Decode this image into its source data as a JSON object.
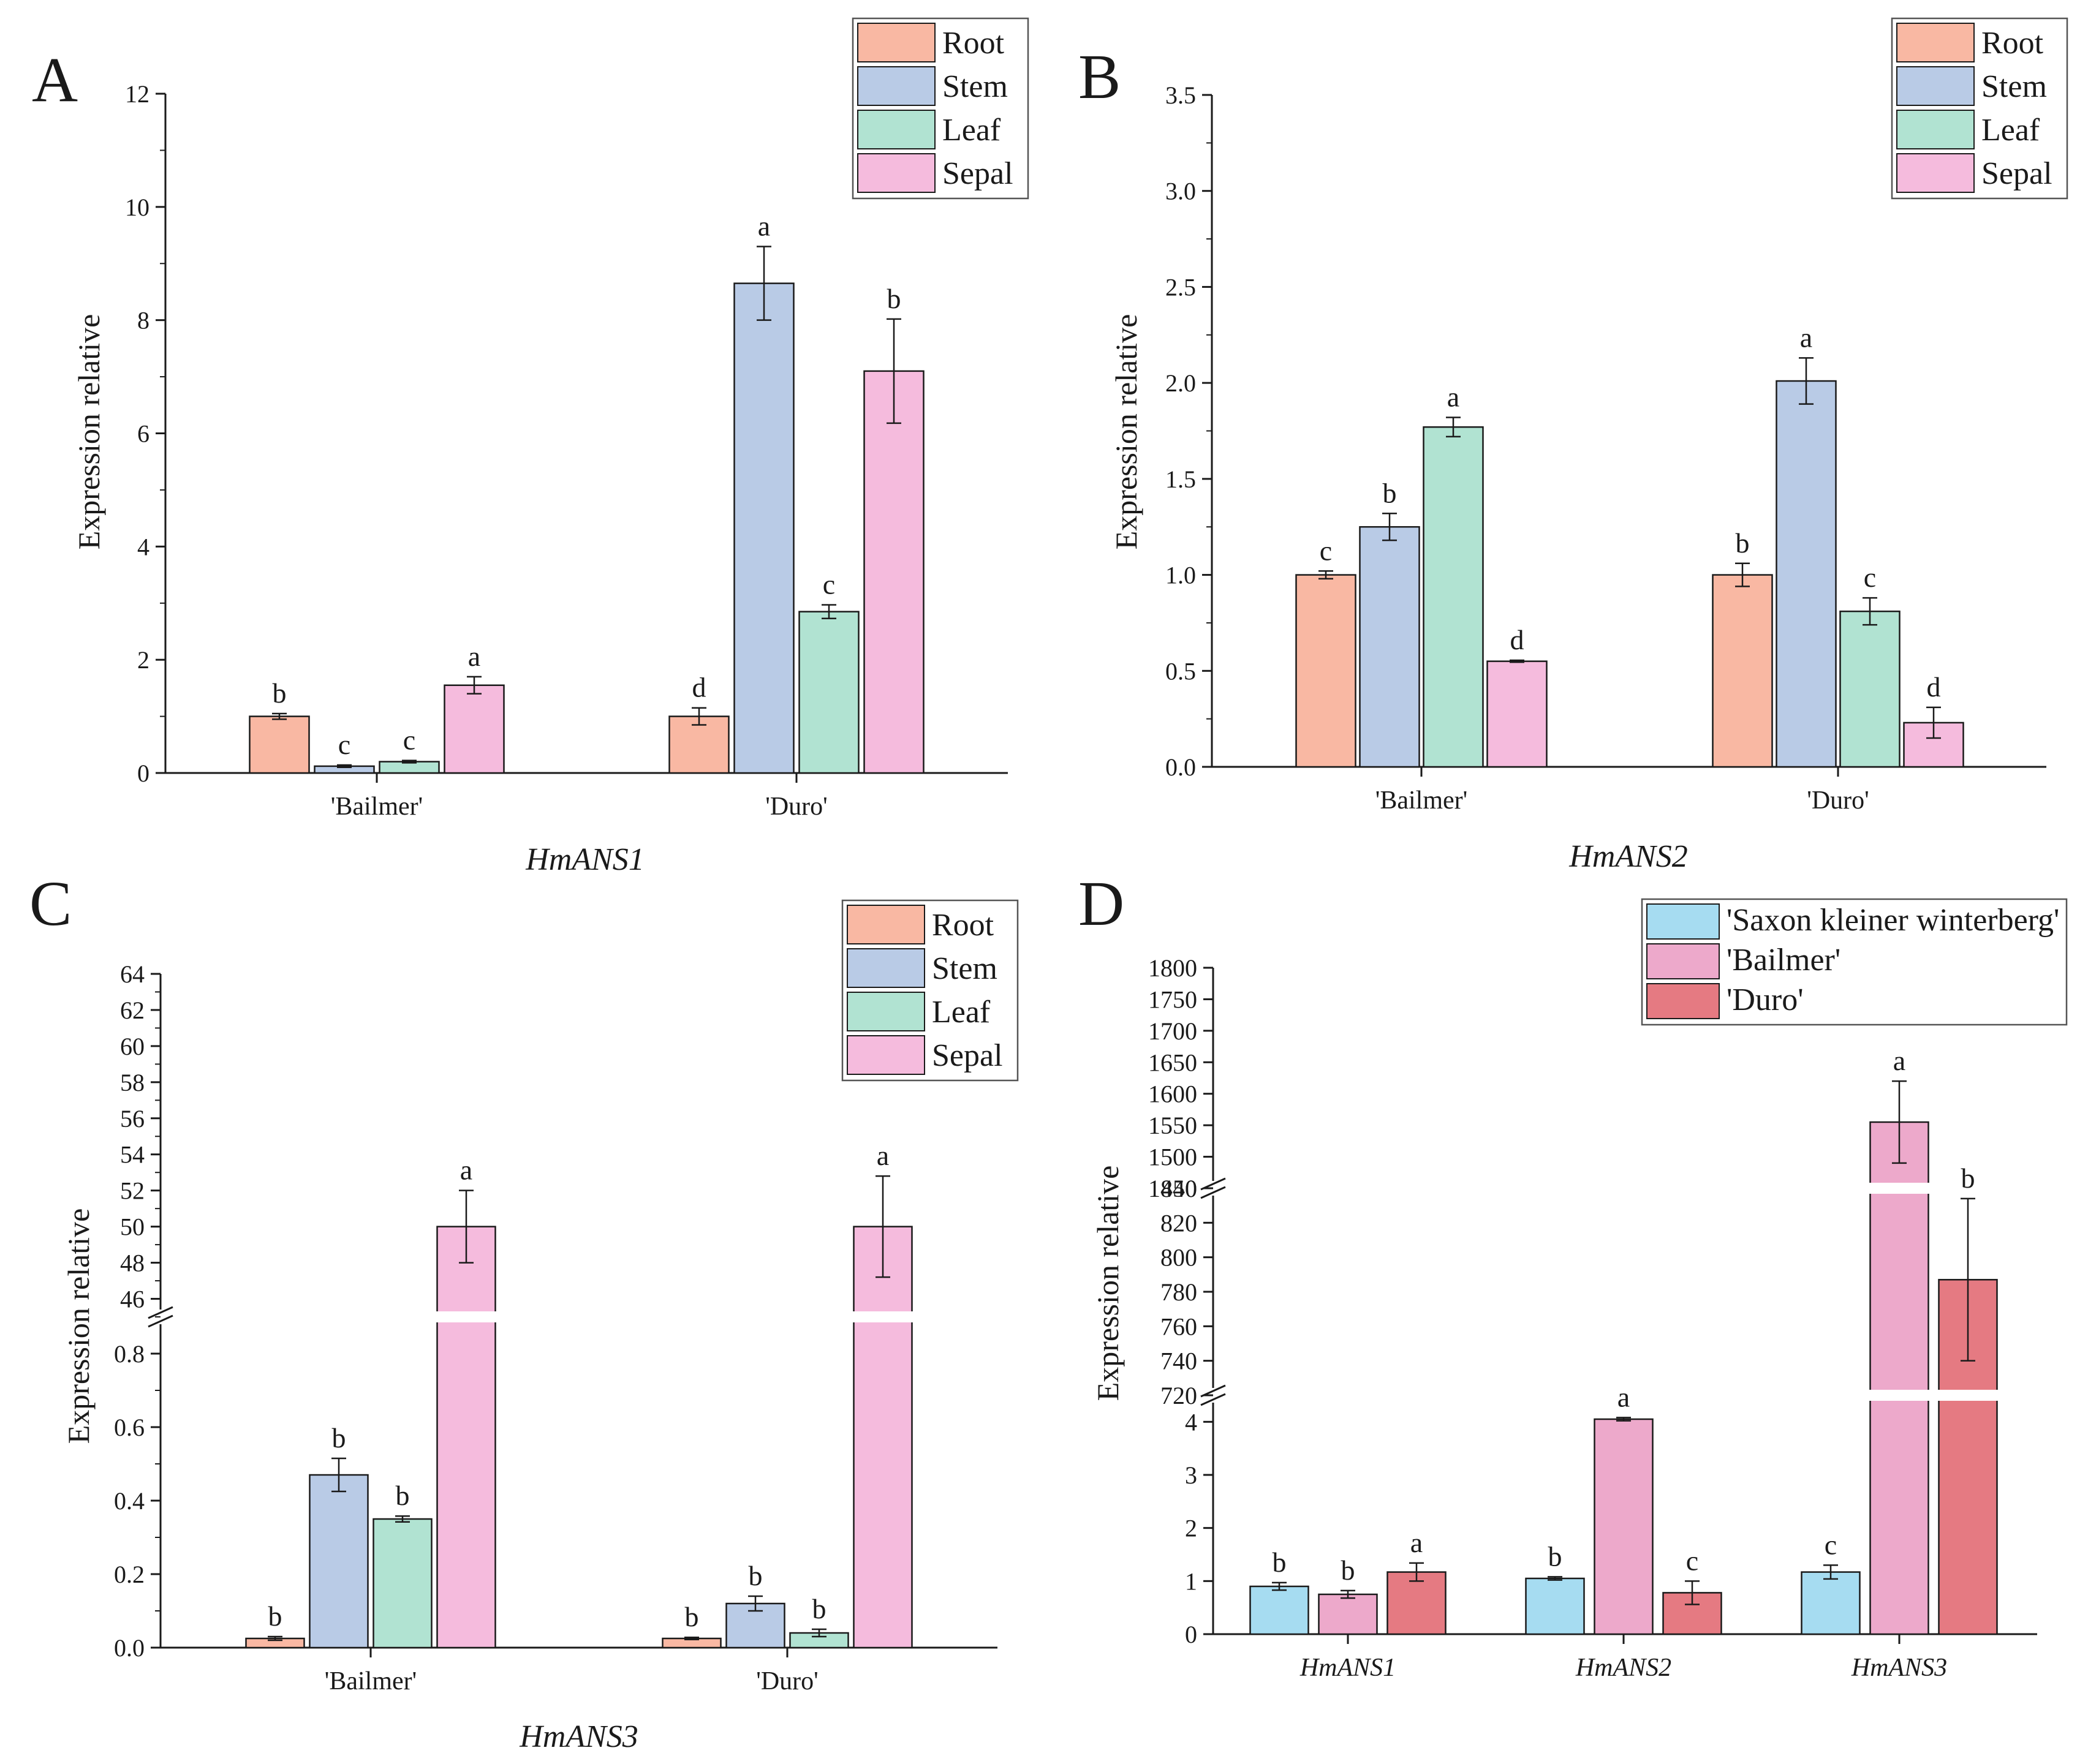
{
  "colors": {
    "Root": "#f9b8a3",
    "Stem": "#b9cbe6",
    "Leaf": "#b1e3d2",
    "Sepal": "#f5bbdd",
    "Saxon": "#a6dcf1",
    "Bailmer": "#eda9cb",
    "Duro": "#e57a82",
    "axis": "#1a1a1a"
  },
  "chart_data": [
    {
      "panel": "A",
      "type": "bar",
      "title": "HmANS1",
      "xlabel": "HmANS1",
      "ylabel": "Expression relative",
      "categories": [
        "'Bailmer'",
        "'Duro'"
      ],
      "ylim": [
        0,
        12
      ],
      "yticks": [
        "0",
        "2",
        "4",
        "6",
        "8",
        "10",
        "12"
      ],
      "legend": "top-right",
      "series": [
        {
          "name": "Root",
          "values": [
            1.0,
            1.0
          ],
          "errors": [
            0.05,
            0.15
          ],
          "letters": [
            "b",
            "d"
          ]
        },
        {
          "name": "Stem",
          "values": [
            0.12,
            8.65
          ],
          "errors": [
            0.02,
            0.65
          ],
          "letters": [
            "c",
            "a"
          ]
        },
        {
          "name": "Leaf",
          "values": [
            0.2,
            2.85
          ],
          "errors": [
            0.02,
            0.12
          ],
          "letters": [
            "c",
            "c"
          ]
        },
        {
          "name": "Sepal",
          "values": [
            1.55,
            7.1
          ],
          "errors": [
            0.15,
            0.92
          ],
          "letters": [
            "a",
            "b"
          ]
        }
      ]
    },
    {
      "panel": "B",
      "type": "bar",
      "title": "HmANS2",
      "xlabel": "HmANS2",
      "ylabel": "Expression relative",
      "categories": [
        "'Bailmer'",
        "'Duro'"
      ],
      "ylim": [
        0,
        3.5
      ],
      "yticks": [
        "0.0",
        "0.5",
        "1.0",
        "1.5",
        "2.0",
        "2.5",
        "3.0",
        "3.5"
      ],
      "legend": "top-right",
      "series": [
        {
          "name": "Root",
          "values": [
            1.0,
            1.0
          ],
          "errors": [
            0.02,
            0.06
          ],
          "letters": [
            "c",
            "b"
          ]
        },
        {
          "name": "Stem",
          "values": [
            1.25,
            2.01
          ],
          "errors": [
            0.07,
            0.12
          ],
          "letters": [
            "b",
            "a"
          ]
        },
        {
          "name": "Leaf",
          "values": [
            1.77,
            0.81
          ],
          "errors": [
            0.05,
            0.07
          ],
          "letters": [
            "a",
            "c"
          ]
        },
        {
          "name": "Sepal",
          "values": [
            0.55,
            0.23
          ],
          "errors": [
            0.005,
            0.08
          ],
          "letters": [
            "d",
            "d"
          ]
        }
      ]
    },
    {
      "panel": "C",
      "type": "bar",
      "title": "HmANS3",
      "xlabel": "HmANS3",
      "ylabel": "Expression relative",
      "categories": [
        "'Bailmer'",
        "'Duro'"
      ],
      "ylim": [
        0,
        64
      ],
      "axis_break": [
        0.9,
        45
      ],
      "yticks": [
        "0.0",
        "0.2",
        "0.4",
        "0.6",
        "0.8",
        "46",
        "48",
        "50",
        "52",
        "54",
        "56",
        "58",
        "60",
        "62",
        "64"
      ],
      "legend": "top-right",
      "series": [
        {
          "name": "Root",
          "values": [
            0.025,
            0.025
          ],
          "errors": [
            0.005,
            0.003
          ],
          "letters": [
            "b",
            "b"
          ]
        },
        {
          "name": "Stem",
          "values": [
            0.47,
            0.12
          ],
          "errors": [
            0.045,
            0.02
          ],
          "letters": [
            "b",
            "b"
          ]
        },
        {
          "name": "Leaf",
          "values": [
            0.35,
            0.04
          ],
          "errors": [
            0.008,
            0.01
          ],
          "letters": [
            "b",
            "b"
          ]
        },
        {
          "name": "Sepal",
          "values": [
            50.0,
            50.0
          ],
          "errors": [
            2.0,
            2.8
          ],
          "letters": [
            "a",
            "a"
          ]
        }
      ]
    },
    {
      "panel": "D",
      "type": "bar",
      "title": "",
      "xlabel": "",
      "ylabel": "Expression relative",
      "categories": [
        "HmANS1",
        "HmANS2",
        "HmANS3"
      ],
      "ylim": [
        0,
        1800
      ],
      "axis_breaks": [
        [
          4.5,
          720
        ],
        [
          840,
          1450
        ]
      ],
      "yticks": [
        "0",
        "1",
        "2",
        "3",
        "4",
        "720",
        "740",
        "760",
        "780",
        "800",
        "820",
        "840",
        "1450",
        "1500",
        "1550",
        "1600",
        "1650",
        "1700",
        "1750",
        "1800"
      ],
      "legend": "top-right",
      "series": [
        {
          "name": "'Saxon kleiner winterberg'",
          "values": [
            0.9,
            1.05,
            1.17
          ],
          "errors": [
            0.07,
            0.03,
            0.13
          ],
          "letters": [
            "b",
            "b",
            "c"
          ]
        },
        {
          "name": "'Bailmer'",
          "values": [
            0.75,
            4.05,
            1555
          ],
          "errors": [
            0.07,
            0.03,
            65
          ],
          "letters": [
            "b",
            "a",
            "a"
          ]
        },
        {
          "name": "'Duro'",
          "values": [
            1.17,
            0.78,
            787
          ],
          "errors": [
            0.17,
            0.22,
            47
          ],
          "letters": [
            "a",
            "c",
            "b"
          ]
        }
      ]
    }
  ],
  "panels": [
    "A",
    "B",
    "C",
    "D"
  ]
}
